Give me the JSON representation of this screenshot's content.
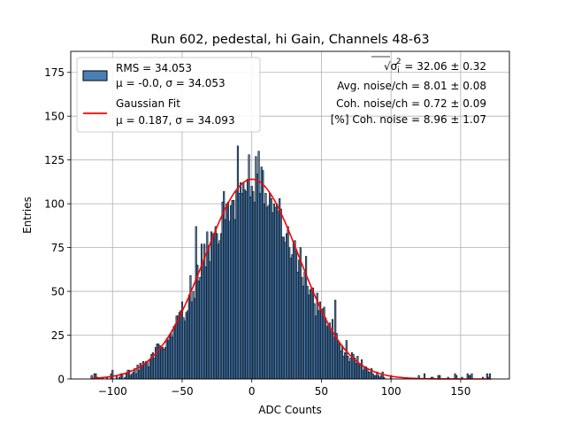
{
  "chart_data": {
    "type": "bar",
    "title": "Run 602, pedestal, hi Gain, Channels 48-63",
    "xlabel": "ADC Counts",
    "ylabel": "Entries",
    "xlim": [
      -130,
      185
    ],
    "ylim": [
      0,
      187
    ],
    "xticks": [
      -100,
      -50,
      0,
      50,
      100,
      150
    ],
    "yticks": [
      0,
      25,
      50,
      75,
      100,
      125,
      150,
      175
    ],
    "grid": true,
    "legend": {
      "placement": "top-left",
      "entries": [
        {
          "kind": "histogram",
          "line1": "RMS = 34.053",
          "line2": "μ = -0.0, σ = 34.053"
        },
        {
          "kind": "fit",
          "line1": "Gaussian Fit",
          "line2": "μ = 0.187, σ = 34.093"
        }
      ]
    },
    "annotations": {
      "line1_prefix": "√σ",
      "line1_sub": "i",
      "line1_sup": "2",
      "line1_value": " = 32.06 ± 0.32",
      "line2": "Avg. noise/ch = 8.01 ± 0.08",
      "line3": "Coh. noise/ch = 0.72 ± 0.09",
      "line4": "[%] Coh. noise = 8.96 ± 1.07"
    },
    "histogram": {
      "bin_width": 1,
      "x_range": [
        -115,
        172
      ],
      "mu": 0,
      "sigma": 34.053,
      "peak": 114,
      "notable_bins": [
        {
          "x": -115,
          "y": 2
        },
        {
          "x": -100,
          "y": 5
        },
        {
          "x": -60,
          "y": 22
        },
        {
          "x": -40,
          "y": 87
        },
        {
          "x": -35,
          "y": 66
        },
        {
          "x": -10,
          "y": 133
        },
        {
          "x": -2,
          "y": 128
        },
        {
          "x": 5,
          "y": 130
        },
        {
          "x": 15,
          "y": 95
        },
        {
          "x": 60,
          "y": 45
        },
        {
          "x": 100,
          "y": 2
        },
        {
          "x": 130,
          "y": 1
        },
        {
          "x": 170,
          "y": 1
        }
      ]
    },
    "fit": {
      "name": "Gaussian Fit",
      "mu": 0.187,
      "sigma": 34.093,
      "amplitude": 114,
      "x_range": [
        -115,
        172
      ]
    },
    "colors": {
      "bar_fill": "#4a7fb5",
      "bar_edge": "#000000",
      "fit_line": "#ff0000",
      "grid": "#b0b0b0"
    }
  }
}
